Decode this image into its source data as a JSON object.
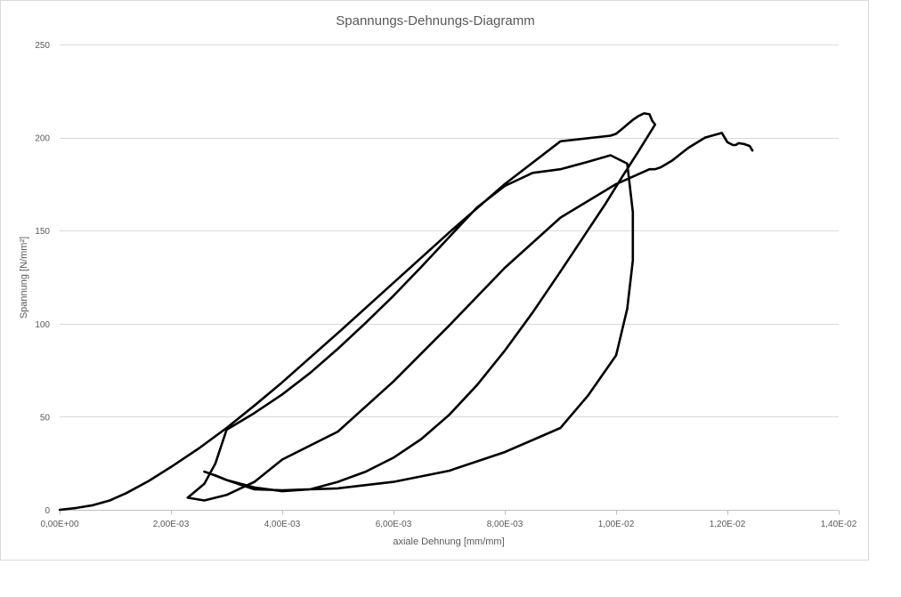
{
  "chart_data": {
    "type": "scatter",
    "title": "Spannungs-Dehnungs-Diagramm",
    "xlabel": "axiale Dehnung [mm/mm]",
    "ylabel": "Spannung [N/mm²]",
    "xlim": [
      0,
      0.014
    ],
    "ylim": [
      0,
      250
    ],
    "x_ticks": [
      0,
      0.002,
      0.004,
      0.006,
      0.008,
      0.01,
      0.012,
      0.014
    ],
    "x_tick_labels": [
      "0,00E+00",
      "2,00E-03",
      "4,00E-03",
      "6,00E-03",
      "8,00E-03",
      "1,00E-02",
      "1,20E-02",
      "1,40E-02"
    ],
    "y_ticks": [
      0,
      50,
      100,
      150,
      200,
      250
    ],
    "y_tick_labels": [
      "0",
      "50",
      "100",
      "150",
      "200",
      "250"
    ],
    "grid": "horizontal",
    "legend": "none",
    "series": [
      {
        "color": "#000000",
        "x": [
          0,
          0.0003,
          0.0006,
          0.0009,
          0.0012,
          0.0016,
          0.002,
          0.0025,
          0.003,
          0.0035,
          0.004,
          0.005,
          0.006,
          0.007,
          0.008,
          0.009,
          0.0099,
          0.01,
          0.0101,
          0.0102,
          0.0103,
          0.0104,
          0.0105,
          0.0106,
          0.01065,
          0.0107,
          0.0104,
          0.0101,
          0.0098,
          0.0095,
          0.009,
          0.0085,
          0.008,
          0.0075,
          0.007,
          0.0065,
          0.006,
          0.0055,
          0.005,
          0.0045,
          0.004,
          0.0035,
          0.003,
          0.0028,
          0.0026,
          0.0027,
          0.003,
          0.0035,
          0.004,
          0.005,
          0.006,
          0.007,
          0.008,
          0.009,
          0.0095,
          0.01,
          0.0102,
          0.0103,
          0.0103,
          0.0102,
          0.0099,
          0.0095,
          0.009,
          0.0085,
          0.008,
          0.0075,
          0.007,
          0.0065,
          0.006,
          0.0055,
          0.005,
          0.0045,
          0.004,
          0.0035,
          0.003,
          0.0028,
          0.0026,
          0.0024,
          0.0023,
          0.0026,
          0.003,
          0.0035,
          0.004,
          0.005,
          0.006,
          0.007,
          0.008,
          0.009,
          0.01,
          0.0106,
          0.0107,
          0.0108,
          0.011,
          0.0113,
          0.0116,
          0.0119,
          0.012,
          0.0121,
          0.01215,
          0.0122,
          0.0123,
          0.01235,
          0.0124,
          0.01245
        ],
        "y": [
          0,
          1,
          2.5,
          5,
          9,
          15.5,
          23,
          33,
          44,
          56,
          68.5,
          95,
          122,
          149,
          175,
          198,
          201,
          202,
          204.5,
          207,
          209.5,
          211.5,
          213,
          212.5,
          209,
          207,
          192.5,
          178.5,
          164,
          150.5,
          128,
          106,
          85.5,
          67,
          51,
          38,
          28,
          20.5,
          15,
          11,
          10,
          12,
          16,
          18.5,
          20.5,
          19.5,
          16,
          11,
          10.5,
          11.5,
          15,
          21,
          31,
          44,
          61.5,
          83,
          108,
          134,
          160,
          186,
          190.5,
          187,
          183,
          181,
          174,
          162.5,
          146.5,
          130.5,
          115,
          100.5,
          86.5,
          73.5,
          62,
          52,
          43,
          25,
          14,
          9,
          6.5,
          5,
          8,
          15,
          27,
          42,
          69,
          99,
          130,
          157,
          175,
          183,
          183,
          184,
          187.5,
          194.5,
          200,
          202.5,
          197.5,
          196,
          196,
          197,
          196.5,
          196,
          195.5,
          193
        ]
      }
    ]
  }
}
